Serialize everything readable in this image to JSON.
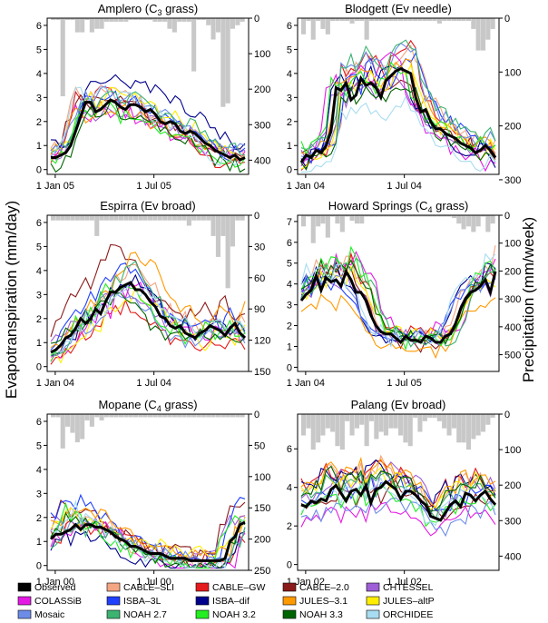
{
  "figure": {
    "ylabel_left": "Evapotranspiration (mm/day)",
    "ylabel_right": "Precipitation (mm/week)"
  },
  "legend": [
    {
      "name": "Observed",
      "color": "#000000"
    },
    {
      "name": "CABLE–SLI",
      "color": "#f4a582"
    },
    {
      "name": "CABLE–GW",
      "color": "#e41a1c"
    },
    {
      "name": "CABLE–2.0",
      "color": "#8b1a1a"
    },
    {
      "name": "CHTESSEL",
      "color": "#9e5fd6"
    },
    {
      "name": "COLASSiB",
      "color": "#e41ae4"
    },
    {
      "name": "ISBA–3L",
      "color": "#2040ff"
    },
    {
      "name": "ISBA–dif",
      "color": "#00008b"
    },
    {
      "name": "JULES–3.1",
      "color": "#ff9900"
    },
    {
      "name": "JULES–altP",
      "color": "#ffee00"
    },
    {
      "name": "Mosaic",
      "color": "#6c8ce8"
    },
    {
      "name": "NOAH 2.7",
      "color": "#3cb371"
    },
    {
      "name": "NOAH 3.2",
      "color": "#22ee22"
    },
    {
      "name": "NOAH 3.3",
      "color": "#006400"
    },
    {
      "name": "ORCHIDEE",
      "color": "#a8dcf0"
    }
  ],
  "chart_data": [
    {
      "type": "line",
      "title": "Amplero (C",
      "title_sub": "3",
      "title_rest": " grass)",
      "x_ticks": [
        "1 Jan 05",
        "1 Jul 05"
      ],
      "y_ticks": [
        "0",
        "1",
        "2",
        "3",
        "4",
        "5",
        "6"
      ],
      "ylim": [
        -0.2,
        6.3
      ],
      "y2_ticks": [
        "0",
        "100",
        "200",
        "300",
        "400"
      ],
      "y2lim": [
        0,
        440
      ],
      "obs": [
        0.5,
        0.5,
        0.6,
        0.7,
        1.0,
        1.6,
        2.2,
        2.8,
        2.8,
        2.4,
        2.5,
        2.7,
        2.9,
        2.8,
        2.6,
        2.5,
        2.7,
        2.7,
        2.6,
        2.4,
        2.5,
        2.3,
        2.0,
        1.9,
        2.0,
        1.9,
        1.6,
        1.5,
        1.6,
        1.5,
        1.3,
        1.1,
        1.0,
        0.8,
        0.7,
        0.6,
        0.5,
        0.6,
        0.4,
        0.5
      ],
      "peak": 3.3,
      "peak_pos": 0.3,
      "spread": 0.45,
      "precip": [
        5,
        5,
        220,
        5,
        5,
        40,
        40,
        5,
        40,
        30,
        30,
        10,
        10,
        10,
        10,
        10,
        5,
        5,
        5,
        5,
        5,
        10,
        10,
        10,
        30,
        40,
        10,
        10,
        10,
        150,
        5,
        5,
        20,
        60,
        40,
        250,
        240,
        30,
        20,
        10
      ]
    },
    {
      "type": "line",
      "title": "Blodgett (Ev needle)",
      "x_ticks": [
        "1 Jan 04",
        "1 Jul 04"
      ],
      "y_ticks": [
        "0",
        "1",
        "2",
        "3",
        "4",
        "5",
        "6"
      ],
      "ylim": [
        -0.2,
        6.3
      ],
      "y2_ticks": [
        "0",
        "100",
        "200",
        "300"
      ],
      "y2lim": [
        0,
        290
      ],
      "obs": [
        0.3,
        0.6,
        0.5,
        0.8,
        0.7,
        1.0,
        1.6,
        3.4,
        3.3,
        3.6,
        2.9,
        3.1,
        3.8,
        3.5,
        3.6,
        3.4,
        3.0,
        3.7,
        3.9,
        4.1,
        4.2,
        4.1,
        4.0,
        3.0,
        2.4,
        2.5,
        2.0,
        1.7,
        1.7,
        1.5,
        1.4,
        1.3,
        1.1,
        1.0,
        0.9,
        0.7,
        0.8,
        1.0,
        0.8,
        0.5
      ],
      "peak": 4.4,
      "peak_pos": 0.32,
      "spread": 0.55,
      "precip": [
        30,
        5,
        40,
        5,
        20,
        30,
        5,
        5,
        5,
        5,
        10,
        5,
        5,
        40,
        5,
        5,
        5,
        5,
        5,
        5,
        5,
        5,
        5,
        5,
        5,
        5,
        5,
        5,
        10,
        5,
        5,
        5,
        5,
        5,
        5,
        20,
        60,
        60,
        40,
        20
      ]
    },
    {
      "type": "line",
      "title": "Espirra (Ev broad)",
      "x_ticks": [
        "1 Jan 04",
        "1 Jul 04"
      ],
      "y_ticks": [
        "0",
        "1",
        "2",
        "3",
        "4",
        "5",
        "6"
      ],
      "ylim": [
        -0.2,
        6.3
      ],
      "y2_ticks": [
        "0",
        "30",
        "60",
        "90",
        "120",
        "150"
      ],
      "y2lim": [
        0,
        150
      ],
      "obs": [
        0.6,
        0.7,
        0.9,
        1.2,
        1.3,
        1.6,
        2.0,
        1.8,
        2.0,
        2.4,
        2.2,
        2.7,
        3.1,
        3.1,
        3.3,
        3.4,
        3.5,
        3.2,
        3.2,
        3.0,
        2.7,
        2.5,
        2.1,
        2.0,
        1.7,
        1.6,
        1.7,
        1.4,
        1.3,
        1.2,
        1.4,
        1.5,
        1.7,
        1.6,
        1.5,
        1.3,
        1.6,
        1.8,
        1.4,
        1.2
      ],
      "peak": 3.6,
      "peak_pos": 0.3,
      "spread": 0.4,
      "precip": [
        5,
        5,
        5,
        5,
        5,
        5,
        5,
        5,
        5,
        20,
        5,
        5,
        5,
        5,
        5,
        5,
        5,
        5,
        5,
        5,
        5,
        5,
        5,
        5,
        5,
        5,
        5,
        5,
        10,
        5,
        5,
        5,
        5,
        20,
        40,
        20,
        70,
        30,
        5,
        5
      ]
    },
    {
      "type": "line",
      "title": "Howard Springs (C",
      "title_sub": "4",
      "title_rest": " grass)",
      "x_ticks": [
        "1 Jan 04",
        "1 Jul 05"
      ],
      "y_ticks": [
        "0",
        "1",
        "2",
        "3",
        "4",
        "5",
        "6",
        "7"
      ],
      "ylim": [
        -0.2,
        7.3
      ],
      "y2_ticks": [
        "0",
        "100",
        "200",
        "300",
        "400",
        "500"
      ],
      "y2lim": [
        0,
        560
      ],
      "obs": [
        3.2,
        3.5,
        3.7,
        4.4,
        3.7,
        4.3,
        4.1,
        4.2,
        3.9,
        4.6,
        4.2,
        3.6,
        3.6,
        3.2,
        2.5,
        2.0,
        1.7,
        1.6,
        1.6,
        1.4,
        1.2,
        1.5,
        1.3,
        1.3,
        1.2,
        1.5,
        1.4,
        1.2,
        1.2,
        1.5,
        1.6,
        2.1,
        2.8,
        3.3,
        3.6,
        3.7,
        3.9,
        4.2,
        3.6,
        4.6
      ],
      "peak": 4.2,
      "peak_pos": 0.0,
      "spread": 0.0,
      "precip": [
        40,
        5,
        100,
        40,
        30,
        80,
        5,
        30,
        60,
        5,
        20,
        30,
        30,
        5,
        5,
        5,
        5,
        5,
        5,
        5,
        5,
        5,
        5,
        5,
        5,
        5,
        5,
        5,
        5,
        5,
        5,
        10,
        30,
        50,
        40,
        60,
        40,
        5,
        60,
        30
      ]
    },
    {
      "type": "line",
      "title": "Mopane (C",
      "title_sub": "4",
      "title_rest": " grass)",
      "x_ticks": [
        "1 Jan 00",
        "1 Jul 00"
      ],
      "y_ticks": [
        "0",
        "1",
        "2",
        "3",
        "4",
        "5",
        "6"
      ],
      "ylim": [
        -0.2,
        6.3
      ],
      "y2_ticks": [
        "0",
        "50",
        "100",
        "150",
        "200",
        "250"
      ],
      "y2lim": [
        0,
        250
      ],
      "obs": [
        1.1,
        1.3,
        1.3,
        1.4,
        1.5,
        1.7,
        1.5,
        1.7,
        1.7,
        1.6,
        1.6,
        1.5,
        1.4,
        1.2,
        1.1,
        1.0,
        0.8,
        0.8,
        0.7,
        0.6,
        0.5,
        0.5,
        0.5,
        0.4,
        0.3,
        0.3,
        0.3,
        0.3,
        0.2,
        0.2,
        0.2,
        0.2,
        0.2,
        0.2,
        0.2,
        0.3,
        1.0,
        1.2,
        1.7,
        1.8
      ],
      "peak": 5.0,
      "peak_pos": 0.1,
      "spread": 0.2,
      "precip": [
        5,
        5,
        55,
        20,
        30,
        45,
        40,
        10,
        20,
        5,
        10,
        5,
        5,
        5,
        5,
        5,
        5,
        5,
        5,
        5,
        5,
        5,
        5,
        5,
        5,
        5,
        5,
        5,
        5,
        5,
        5,
        5,
        5,
        5,
        5,
        5,
        5,
        5,
        5,
        5
      ]
    },
    {
      "type": "line",
      "title": "Palang (Ev broad)",
      "x_ticks": [
        "1 Jan 02",
        "1 Jul 02"
      ],
      "y_ticks": [
        "0",
        "2",
        "4",
        "6"
      ],
      "ylim": [
        -0.3,
        7.8
      ],
      "y2_ticks": [
        "0",
        "100",
        "200",
        "300",
        "400"
      ],
      "y2lim": [
        0,
        440
      ],
      "obs": [
        3.1,
        3.0,
        3.3,
        3.2,
        3.4,
        3.3,
        3.9,
        4.1,
        3.7,
        3.3,
        3.8,
        3.9,
        3.6,
        4.1,
        3.2,
        3.9,
        4.0,
        4.3,
        4.1,
        3.9,
        3.4,
        3.8,
        3.8,
        3.6,
        3.3,
        3.1,
        2.5,
        2.4,
        2.3,
        2.7,
        3.1,
        3.3,
        3.0,
        3.7,
        3.6,
        3.3,
        3.6,
        3.8,
        3.4,
        3.1
      ],
      "peak": 3.6,
      "peak_pos": 0.0,
      "spread": 0.0,
      "precip": [
        60,
        40,
        100,
        80,
        60,
        40,
        50,
        90,
        100,
        20,
        60,
        40,
        30,
        90,
        20,
        70,
        50,
        60,
        40,
        40,
        60,
        80,
        90,
        10,
        50,
        20,
        10,
        10,
        20,
        40,
        60,
        40,
        80,
        80,
        100,
        70,
        60,
        50,
        30,
        10
      ]
    }
  ]
}
